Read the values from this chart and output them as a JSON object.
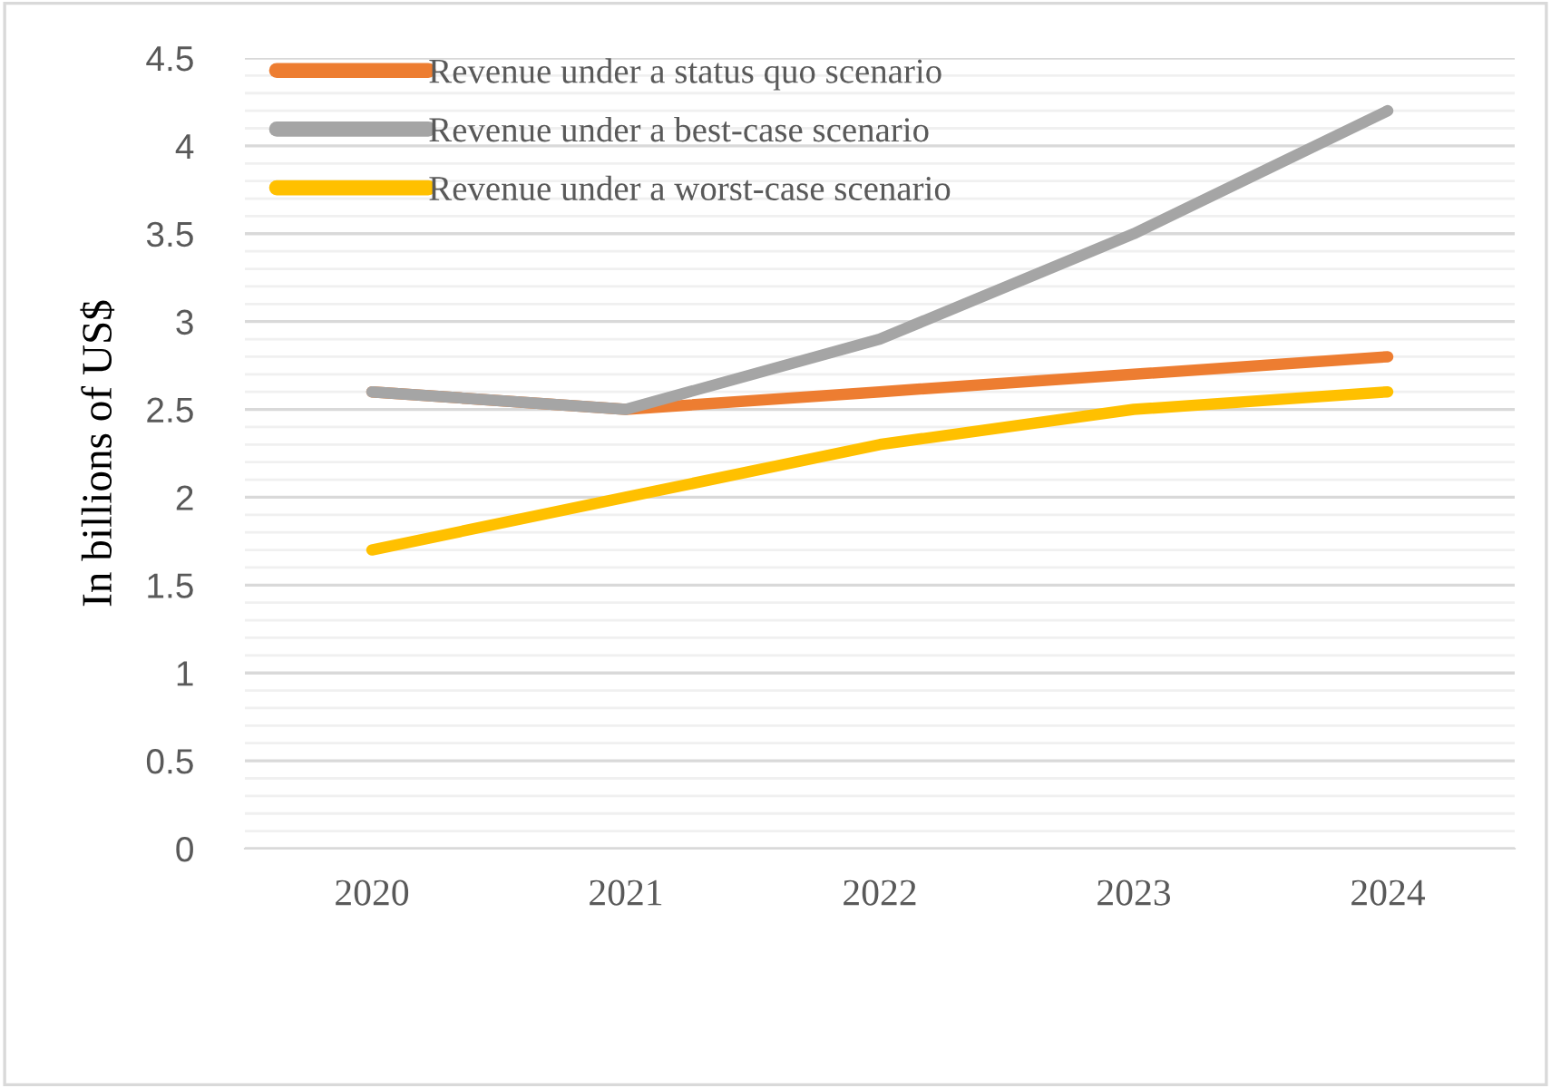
{
  "chart_data": {
    "type": "line",
    "ylabel": "In billions of US$",
    "categories": [
      "2020",
      "2021",
      "2022",
      "2023",
      "2024"
    ],
    "series": [
      {
        "name": "Revenue under a status quo scenario",
        "color": "#ed7d31",
        "values": [
          2.6,
          2.5,
          2.6,
          2.7,
          2.8
        ]
      },
      {
        "name": "Revenue under a best-case scenario",
        "color": "#a5a5a5",
        "values": [
          2.6,
          2.5,
          2.9,
          3.5,
          4.2
        ]
      },
      {
        "name": "Revenue under a worst-case scenario",
        "color": "#ffc000",
        "values": [
          1.7,
          2.0,
          2.3,
          2.5,
          2.6
        ]
      }
    ],
    "ylim": [
      0,
      4.5
    ],
    "yticks": [
      0,
      {
        "value": 0.1,
        "label": null
      },
      {
        "value": 0.2,
        "label": null
      },
      {
        "value": 0.3,
        "label": null
      },
      {
        "value": 0.4,
        "label": null
      },
      0.5,
      {
        "value": 0.6,
        "label": null
      },
      {
        "value": 0.7,
        "label": null
      },
      {
        "value": 0.8,
        "label": null
      },
      {
        "value": 0.9,
        "label": null
      },
      1,
      {
        "value": 1.1,
        "label": null
      },
      {
        "value": 1.2,
        "label": null
      },
      {
        "value": 1.3,
        "label": null
      },
      {
        "value": 1.4,
        "label": null
      },
      1.5,
      {
        "value": 1.6,
        "label": null
      },
      {
        "value": 1.7,
        "label": null
      },
      {
        "value": 1.8,
        "label": null
      },
      {
        "value": 1.9,
        "label": null
      },
      2,
      {
        "value": 2.1,
        "label": null
      },
      {
        "value": 2.2,
        "label": null
      },
      {
        "value": 2.3,
        "label": null
      },
      {
        "value": 2.4,
        "label": null
      },
      2.5,
      {
        "value": 2.6,
        "label": null
      },
      {
        "value": 2.7,
        "label": null
      },
      {
        "value": 2.8,
        "label": null
      },
      {
        "value": 2.9,
        "label": null
      },
      3,
      {
        "value": 3.1,
        "label": null
      },
      {
        "value": 3.2,
        "label": null
      },
      {
        "value": 3.3,
        "label": null
      },
      {
        "value": 3.4,
        "label": null
      },
      3.5,
      {
        "value": 3.6,
        "label": null
      },
      {
        "value": 3.7,
        "label": null
      },
      {
        "value": 3.8,
        "label": null
      },
      {
        "value": 3.9,
        "label": null
      },
      4,
      {
        "value": 4.1,
        "label": null
      },
      {
        "value": 4.2,
        "label": null
      },
      {
        "value": 4.3,
        "label": null
      },
      {
        "value": 4.4,
        "label": null
      },
      4.5
    ],
    "grid": "y",
    "legend": "top left",
    "marker": "none",
    "line_style": "solid"
  }
}
